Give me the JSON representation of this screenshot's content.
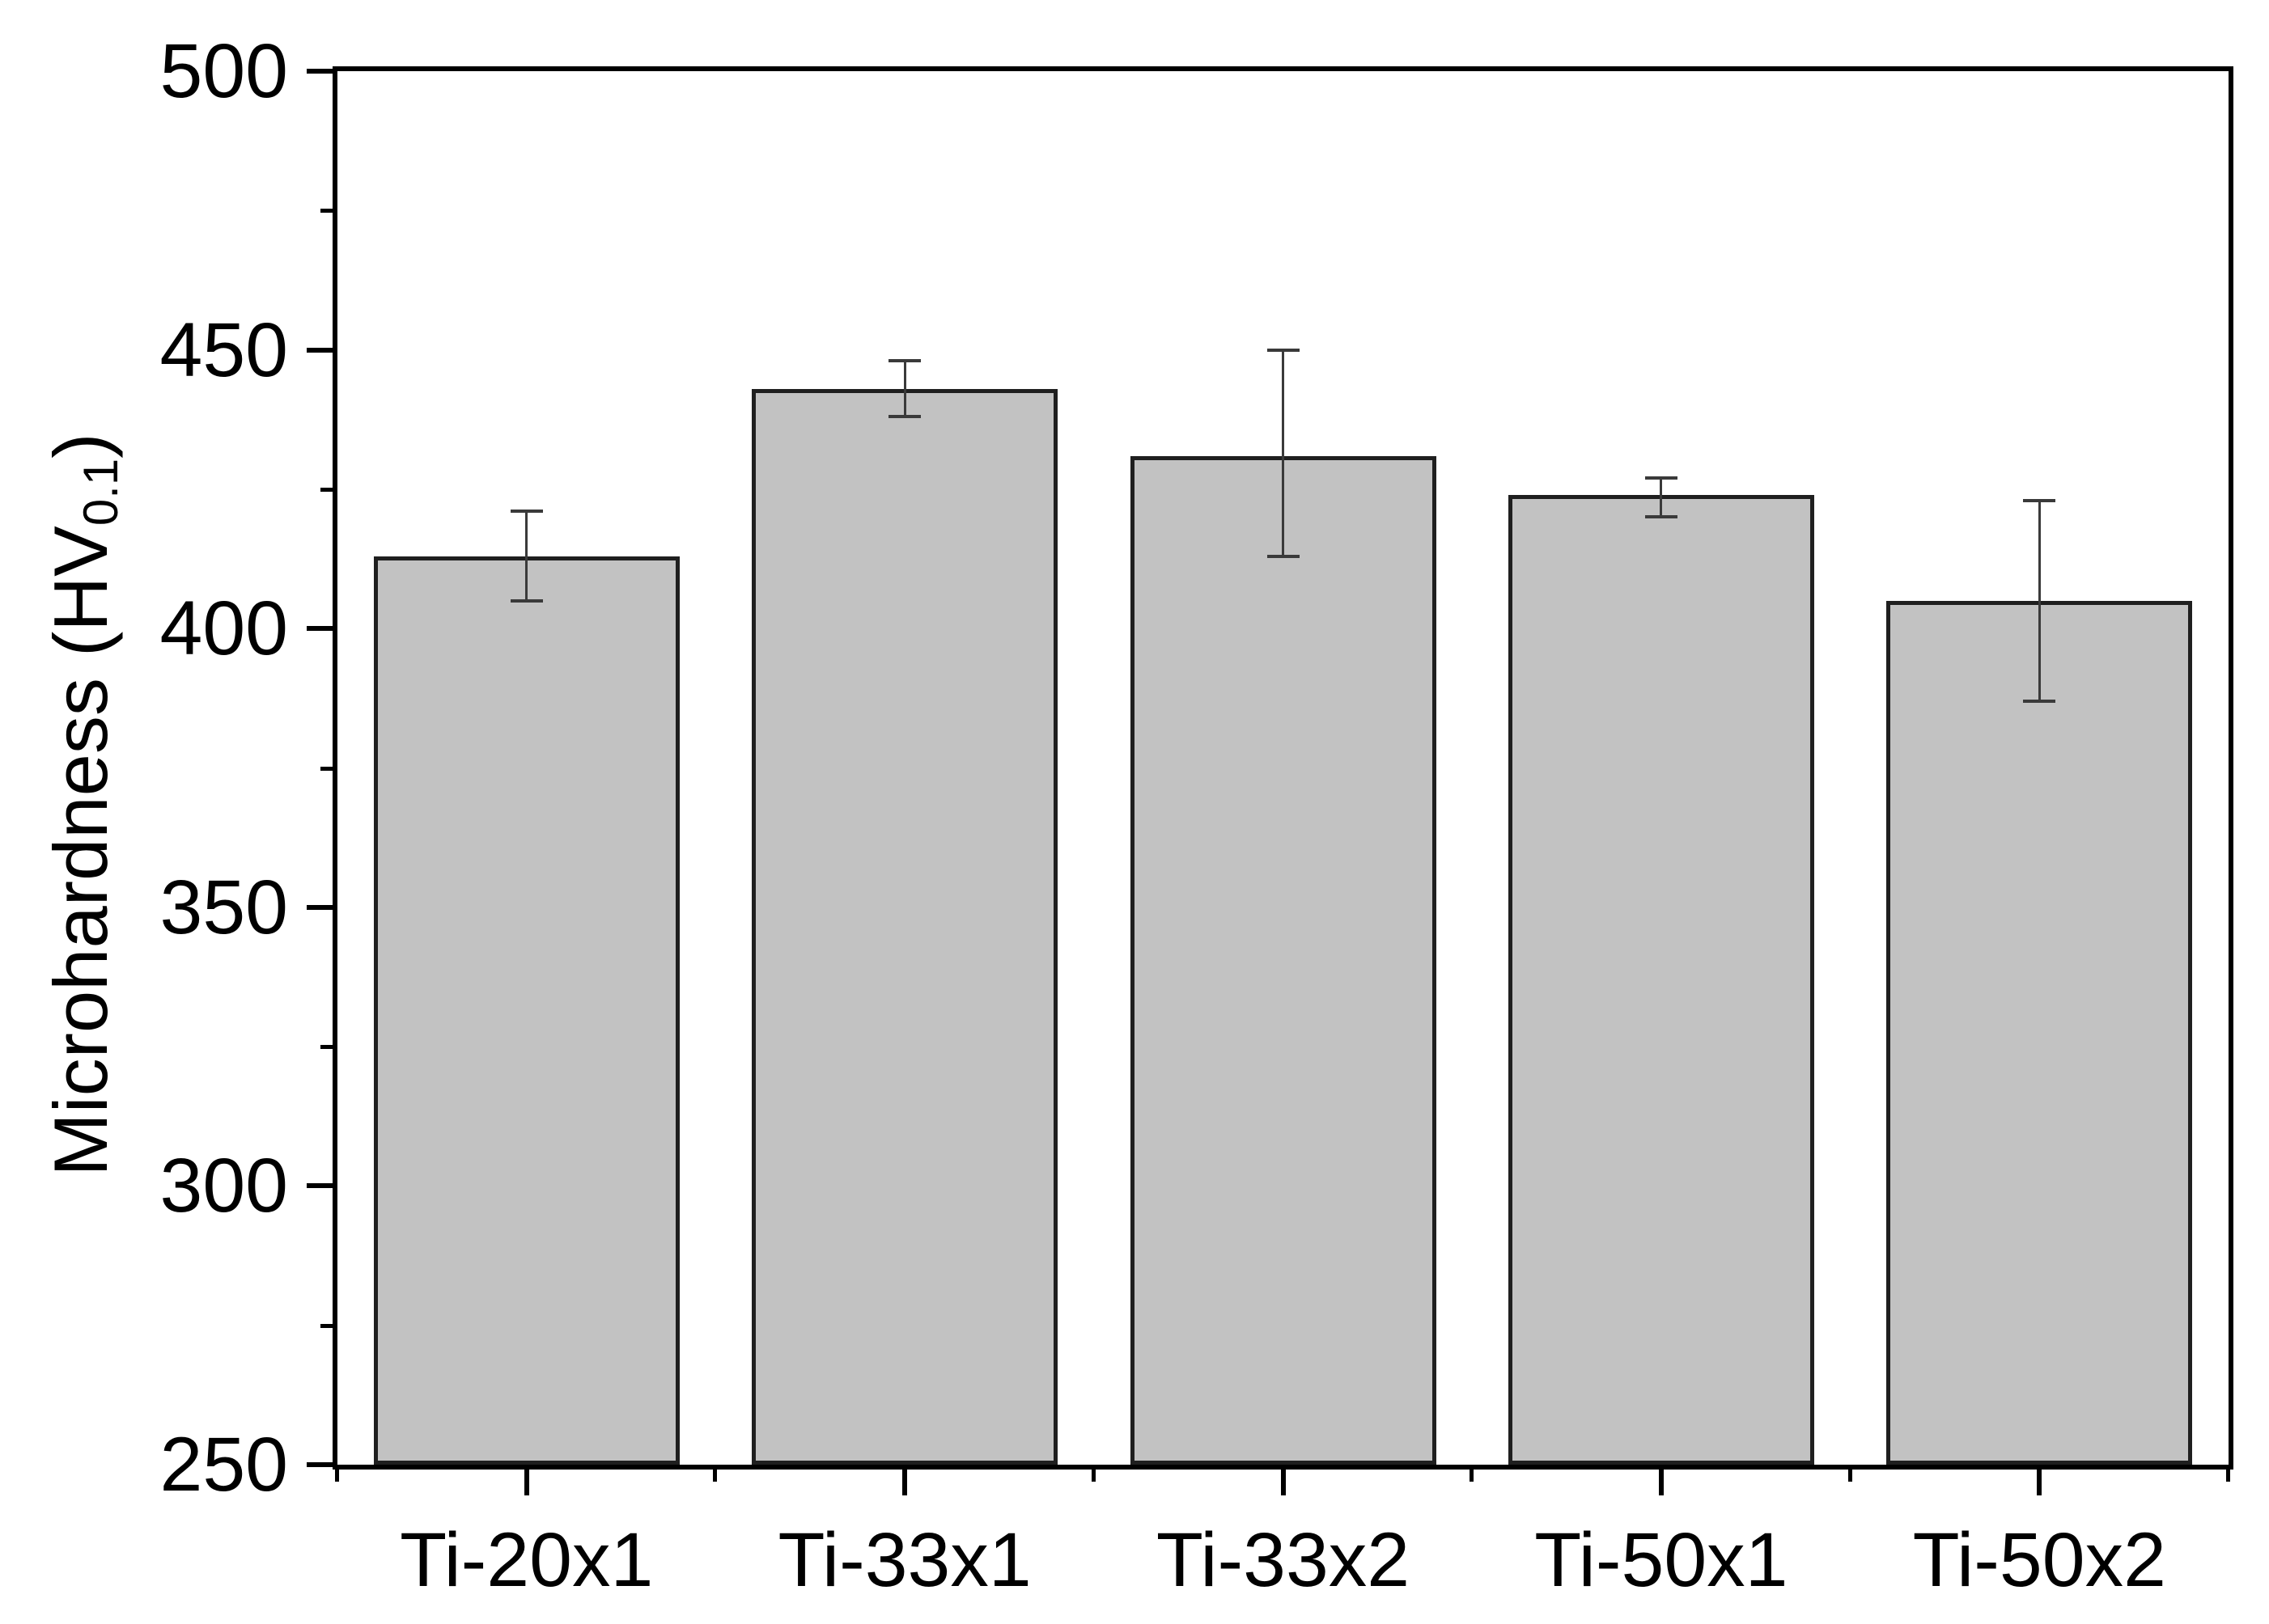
{
  "axis": {
    "y_title_prefix": "Microhardness (HV",
    "y_title_sub": "0.1",
    "y_title_suffix": ")",
    "y_ticks": [
      500,
      450,
      400,
      350,
      300,
      250
    ],
    "y_minor_ticks": [
      475,
      425,
      375,
      325,
      275
    ]
  },
  "chart_data": {
    "type": "bar",
    "title": "",
    "xlabel": "",
    "ylabel": "Microhardness (HV 0.1)",
    "categories": [
      "Ti-20x1",
      "Ti-33x1",
      "Ti-33x2",
      "Ti-50x1",
      "Ti-50x2"
    ],
    "values": [
      413,
      443,
      431,
      424,
      405
    ],
    "error_plus": [
      8,
      5,
      19,
      3,
      18
    ],
    "error_minus": [
      8,
      5,
      18,
      4,
      18
    ],
    "ylim": [
      250,
      500
    ],
    "y_major_step": 50,
    "y_minor_step": 25,
    "grid": false,
    "legend": false,
    "bar_fill": "#c2c2c2",
    "bar_border": "#1f1f1f",
    "error_color": "#3a3a3a",
    "axis_color": "#000000",
    "text_color": "#000000"
  }
}
